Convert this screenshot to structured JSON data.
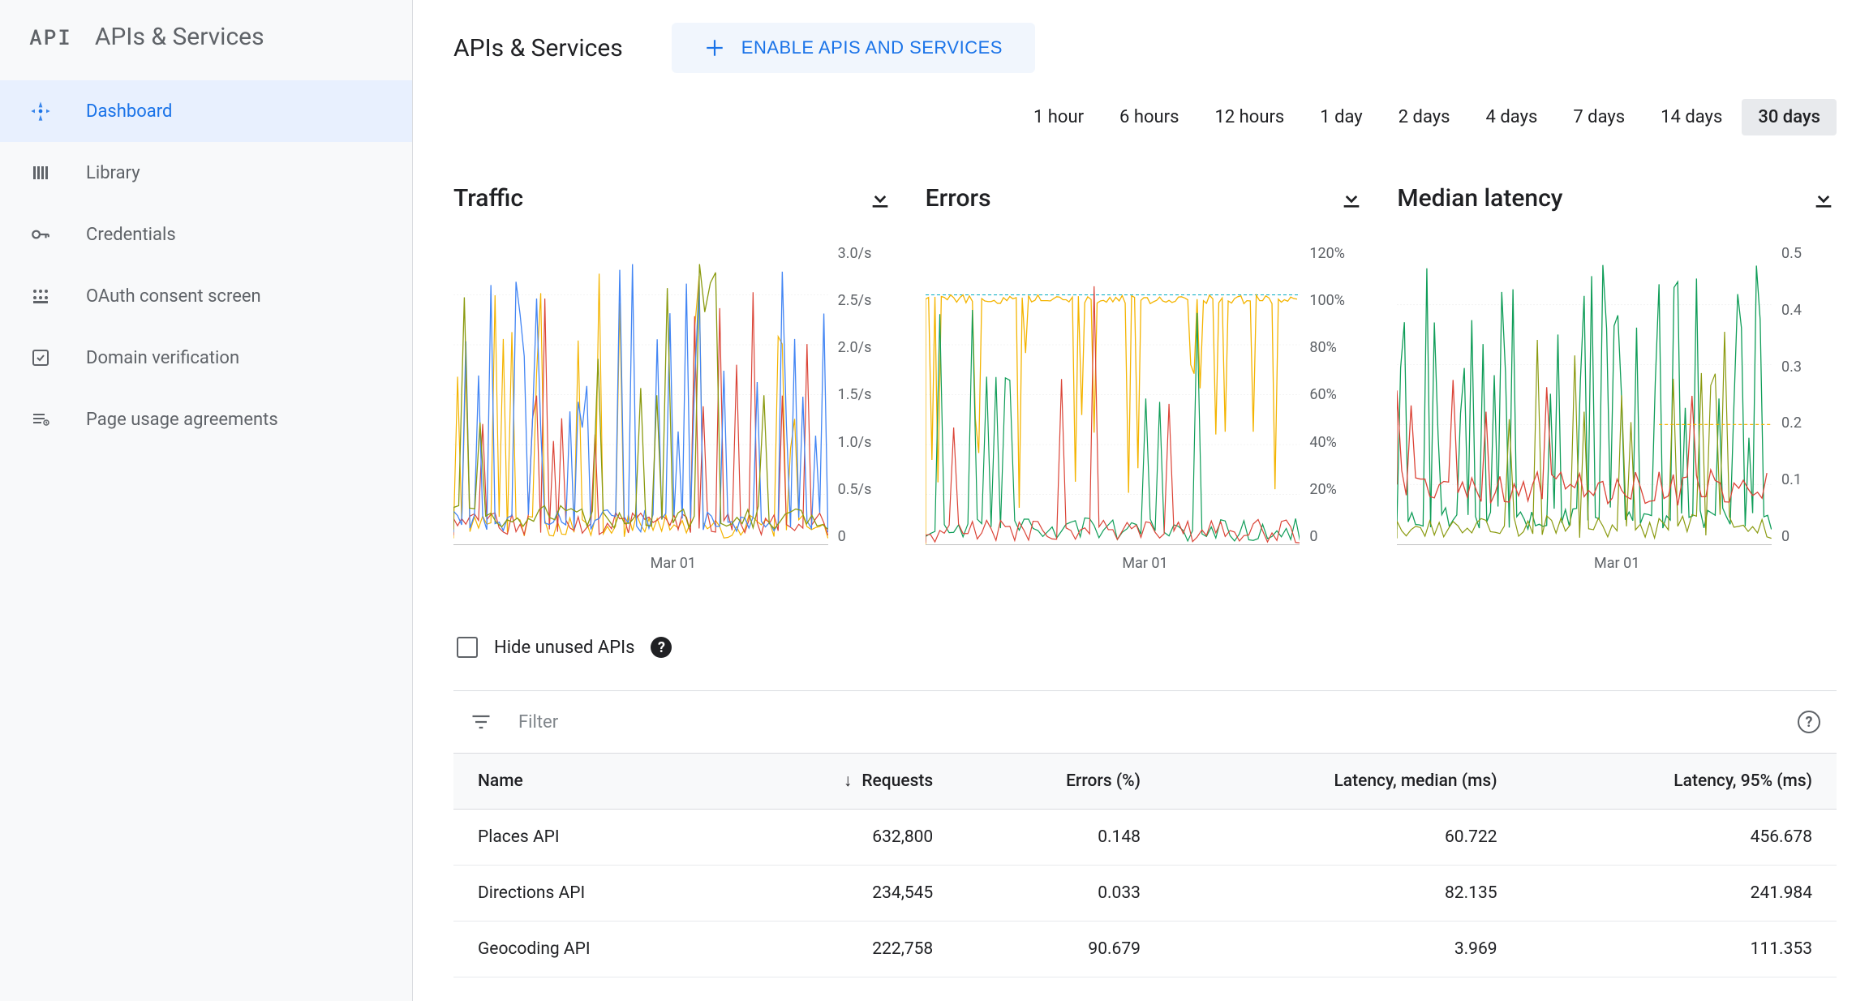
{
  "sidebar": {
    "logo_text": "API",
    "title": "APIs & Services",
    "items": [
      {
        "label": "Dashboard",
        "icon": "dashboard",
        "active": true
      },
      {
        "label": "Library",
        "icon": "library",
        "active": false
      },
      {
        "label": "Credentials",
        "icon": "key",
        "active": false
      },
      {
        "label": "OAuth consent screen",
        "icon": "consent",
        "active": false
      },
      {
        "label": "Domain verification",
        "icon": "check-square",
        "active": false
      },
      {
        "label": "Page usage agreements",
        "icon": "agreement",
        "active": false
      }
    ]
  },
  "header": {
    "title": "APIs & Services",
    "enable_button": "ENABLE APIS AND SERVICES"
  },
  "time_tabs": {
    "options": [
      "1 hour",
      "6 hours",
      "12 hours",
      "1 day",
      "2 days",
      "4 days",
      "7 days",
      "14 days",
      "30 days"
    ],
    "active": "30 days"
  },
  "charts": {
    "traffic": {
      "title": "Traffic",
      "type": "line",
      "y_ticks": [
        "3.0/s",
        "2.5/s",
        "2.0/s",
        "1.5/s",
        "1.0/s",
        "0.5/s",
        "0"
      ],
      "y_min": 0,
      "y_max": 3.0,
      "x_label": "Mar 01",
      "background_color": "#ffffff",
      "grid_color": "#e0e0e0",
      "series": [
        {
          "color": "#8a9a0f",
          "stroke_width": 1.5
        },
        {
          "color": "#4285f4",
          "stroke_width": 1.5
        },
        {
          "color": "#f4b400",
          "stroke_width": 1.5
        },
        {
          "color": "#db4437",
          "stroke_width": 1.5
        }
      ]
    },
    "errors": {
      "title": "Errors",
      "type": "line",
      "y_ticks": [
        "120%",
        "100%",
        "80%",
        "60%",
        "40%",
        "20%",
        "0"
      ],
      "y_min": 0,
      "y_max": 120,
      "x_label": "Mar 01",
      "background_color": "#ffffff",
      "grid_color": "#e0e0e0",
      "series": [
        {
          "color": "#f4b400",
          "stroke_width": 1.5
        },
        {
          "color": "#0f9d58",
          "stroke_width": 1.5
        },
        {
          "color": "#db4437",
          "stroke_width": 1.5
        },
        {
          "color": "#00acc1",
          "stroke_width": 1.5,
          "dashed": true
        }
      ]
    },
    "latency": {
      "title": "Median latency",
      "type": "line",
      "y_ticks": [
        "0.5",
        "0.4",
        "0.3",
        "0.2",
        "0.1",
        "0"
      ],
      "y_min": 0,
      "y_max": 0.5,
      "x_label": "Mar 01",
      "background_color": "#ffffff",
      "grid_color": "#e0e0e0",
      "series": [
        {
          "color": "#8a9a0f",
          "stroke_width": 1.5
        },
        {
          "color": "#0f9d58",
          "stroke_width": 1.5
        },
        {
          "color": "#db4437",
          "stroke_width": 1.5
        },
        {
          "color": "#f4b400",
          "stroke_width": 1.5
        }
      ]
    }
  },
  "controls": {
    "hide_unused_label": "Hide unused APIs",
    "filter_placeholder": "Filter"
  },
  "table": {
    "columns": [
      "Name",
      "Requests",
      "Errors (%)",
      "Latency, median (ms)",
      "Latency, 95% (ms)"
    ],
    "sort_column": 1,
    "sort_direction": "desc",
    "rows": [
      [
        "Places API",
        "632,800",
        "0.148",
        "60.722",
        "456.678"
      ],
      [
        "Directions API",
        "234,545",
        "0.033",
        "82.135",
        "241.984"
      ],
      [
        "Geocoding API",
        "222,758",
        "90.679",
        "3.969",
        "111.353"
      ]
    ]
  },
  "colors": {
    "primary": "#1a73e8",
    "active_bg": "#e8f0fe",
    "text_secondary": "#5f6368",
    "border": "#dadce0"
  }
}
